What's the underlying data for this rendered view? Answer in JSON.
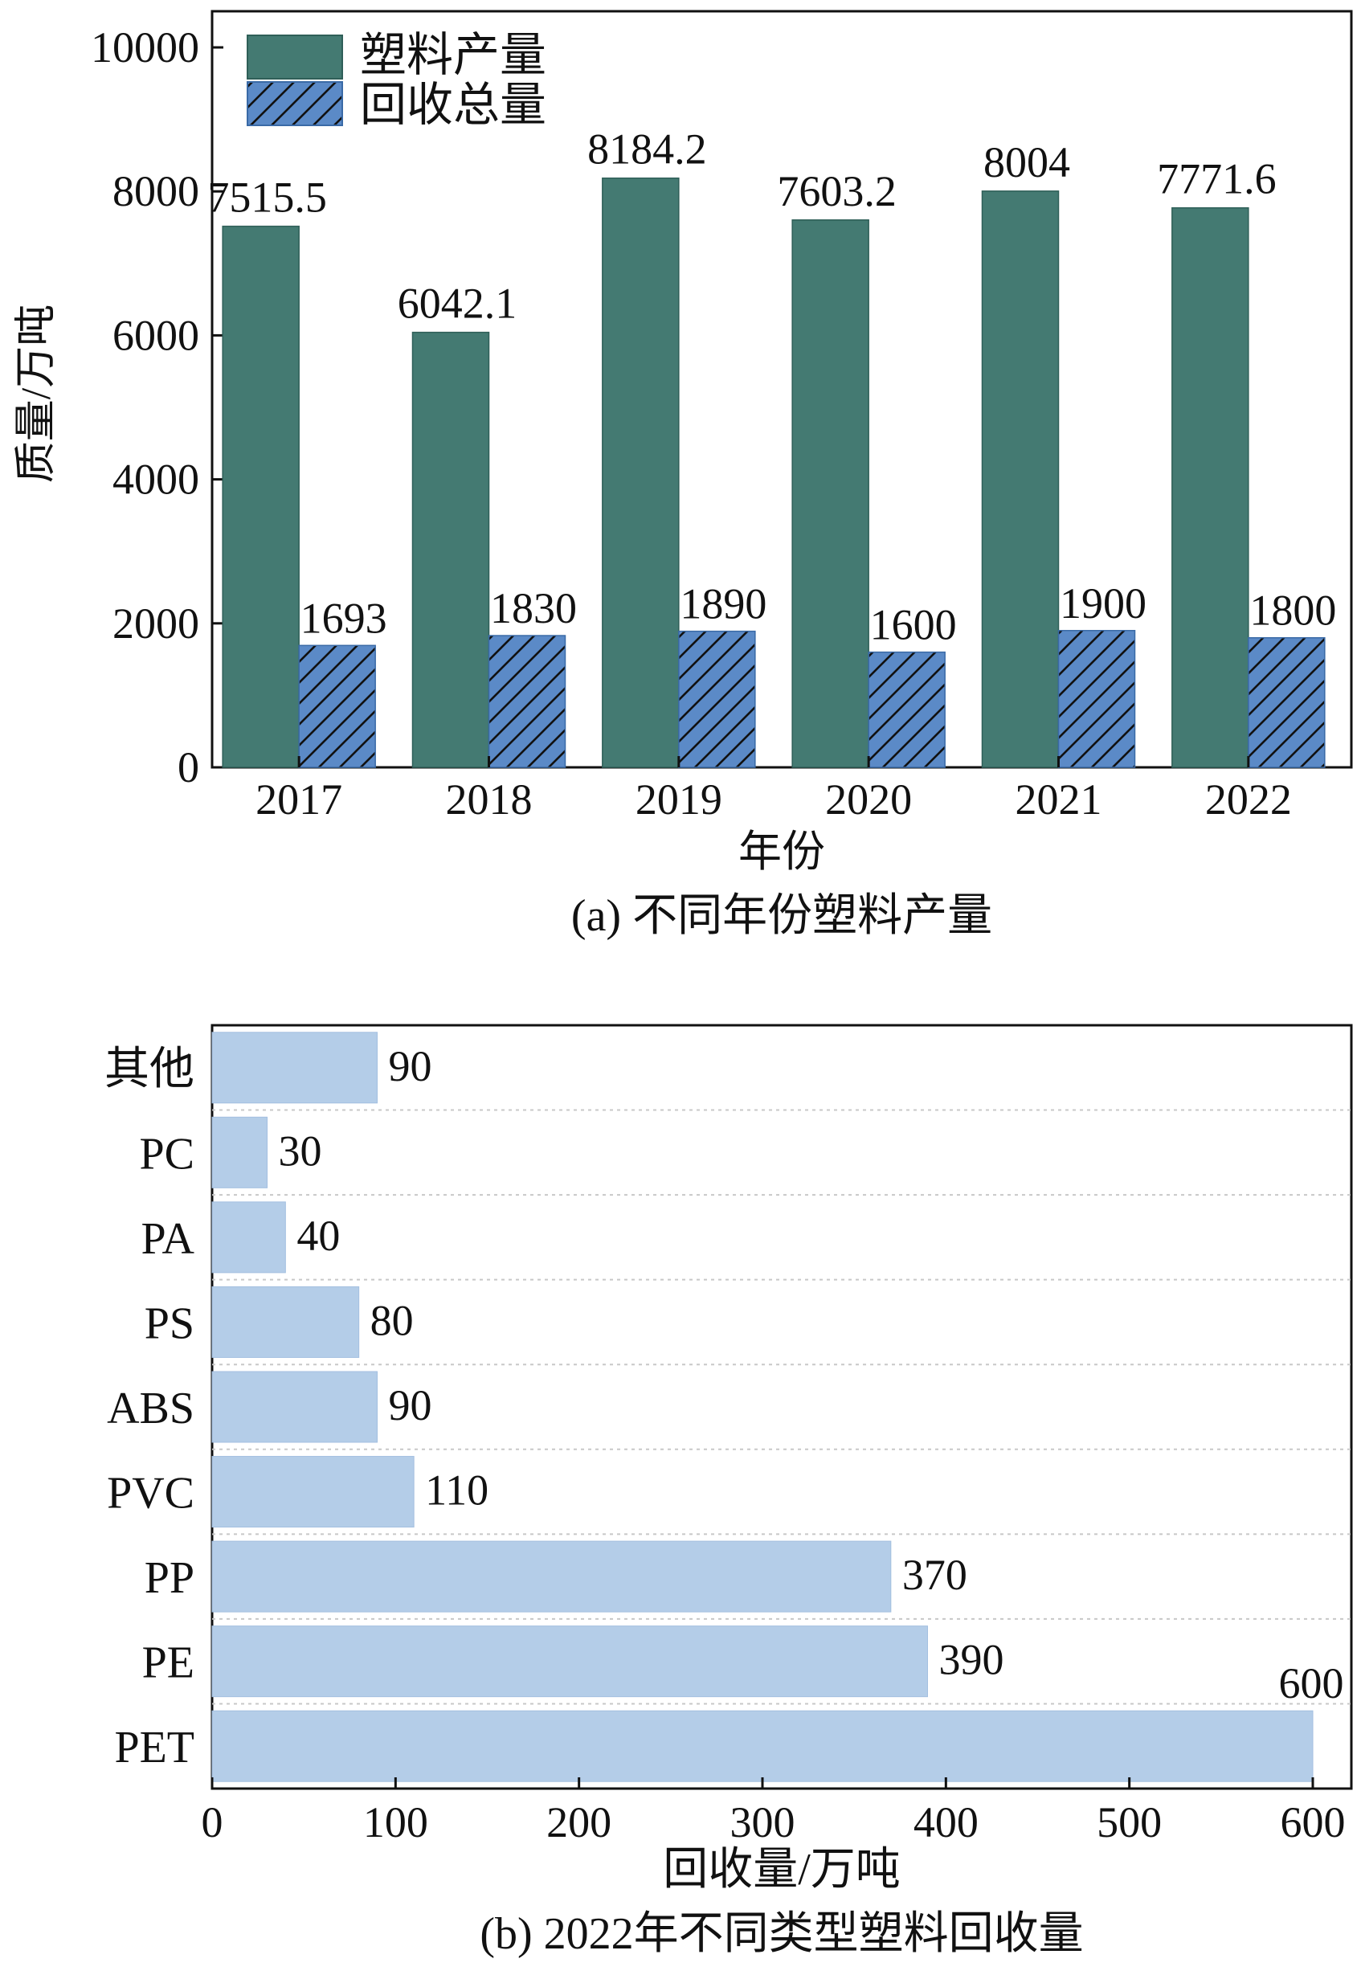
{
  "chart_data": [
    {
      "type": "bar",
      "caption": "(a) 不同年份塑料产量",
      "xlabel": "年份",
      "ylabel": "质量/万吨",
      "ylim": [
        0,
        10000
      ],
      "yticks": [
        "0",
        "2000",
        "4000",
        "6000",
        "8000",
        "10000"
      ],
      "categories": [
        "2017",
        "2018",
        "2019",
        "2020",
        "2021",
        "2022"
      ],
      "legend_position": "top-left",
      "series": [
        {
          "name": "塑料产量",
          "values": [
            7515.5,
            6042.1,
            8184.2,
            7603.2,
            8004,
            7771.6
          ],
          "value_labels": [
            "7515.5",
            "6042.1",
            "8184.2",
            "7603.2",
            "8004",
            "7771.6"
          ],
          "color": "#447a72",
          "pattern": "solid"
        },
        {
          "name": "回收总量",
          "values": [
            1693,
            1830,
            1890,
            1600,
            1900,
            1800
          ],
          "value_labels": [
            "1693",
            "1830",
            "1890",
            "1600",
            "1900",
            "1800"
          ],
          "color": "#5b8ac7",
          "pattern": "diagonal-hatch"
        }
      ]
    },
    {
      "type": "bar",
      "orientation": "horizontal",
      "caption": "(b) 2022年不同类型塑料回收量",
      "xlabel": "回收量/万吨",
      "ylabel": "",
      "xlim": [
        0,
        600
      ],
      "xticks": [
        "0",
        "100",
        "200",
        "300",
        "400",
        "500",
        "600"
      ],
      "categories": [
        "其他",
        "PC",
        "PA",
        "PS",
        "ABS",
        "PVC",
        "PP",
        "PE",
        "PET"
      ],
      "values": [
        90,
        30,
        40,
        80,
        90,
        110,
        370,
        390,
        600
      ],
      "value_labels": [
        "90",
        "30",
        "40",
        "80",
        "90",
        "110",
        "370",
        "390",
        "600"
      ],
      "color": "#b4cde8",
      "grid": "horizontal-dotted"
    }
  ]
}
